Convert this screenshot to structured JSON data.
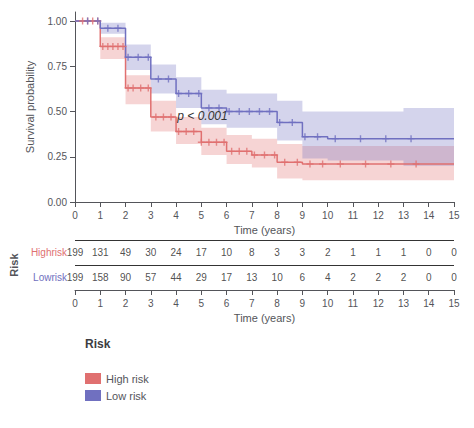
{
  "chart_data": {
    "type": "line",
    "xlabel": "Time (years)",
    "ylabel": "Survival probability",
    "annotation": "p < 0.001",
    "x": [
      0,
      1,
      2,
      3,
      4,
      5,
      6,
      7,
      8,
      9,
      10,
      11,
      12,
      13,
      14,
      15
    ],
    "series": [
      {
        "name": "High risk",
        "color": "#E07070",
        "marker": "plus",
        "values": [
          1.0,
          0.86,
          0.63,
          0.47,
          0.39,
          0.33,
          0.28,
          0.26,
          0.22,
          0.21,
          0.21,
          0.21,
          0.21,
          0.21,
          0.21,
          0.21
        ],
        "upper": [
          1.0,
          0.91,
          0.7,
          0.56,
          0.47,
          0.41,
          0.37,
          0.35,
          0.32,
          0.31,
          0.31,
          0.31,
          0.31,
          0.31,
          0.31,
          0.31
        ],
        "lower": [
          1.0,
          0.79,
          0.54,
          0.39,
          0.32,
          0.26,
          0.21,
          0.19,
          0.13,
          0.12,
          0.12,
          0.12,
          0.12,
          0.12,
          0.12,
          0.12
        ],
        "censor_x": [
          0.3,
          0.5,
          0.7,
          0.9,
          1.1,
          1.3,
          1.5,
          1.7,
          1.9,
          2.1,
          2.3,
          2.6,
          2.9,
          3.2,
          3.5,
          3.8,
          4.1,
          4.4,
          4.7,
          5.0,
          5.3,
          5.6,
          5.9,
          6.2,
          6.5,
          6.8,
          7.1,
          7.5,
          7.9,
          8.3,
          8.8,
          9.3,
          9.8,
          10.5,
          11.5,
          12.5,
          13.5
        ],
        "censor_y": [
          1.0,
          1.0,
          1.0,
          1.0,
          0.86,
          0.86,
          0.86,
          0.86,
          0.86,
          0.63,
          0.63,
          0.63,
          0.63,
          0.47,
          0.47,
          0.47,
          0.39,
          0.39,
          0.39,
          0.33,
          0.33,
          0.33,
          0.33,
          0.28,
          0.28,
          0.28,
          0.26,
          0.26,
          0.26,
          0.22,
          0.22,
          0.21,
          0.21,
          0.21,
          0.21,
          0.21,
          0.21
        ]
      },
      {
        "name": "Low risk",
        "color": "#7070C0",
        "marker": "plus",
        "values": [
          1.0,
          0.96,
          0.8,
          0.68,
          0.6,
          0.52,
          0.5,
          0.5,
          0.44,
          0.36,
          0.35,
          0.35,
          0.35,
          0.35,
          0.35,
          0.35
        ],
        "upper": [
          1.0,
          0.99,
          0.87,
          0.76,
          0.69,
          0.62,
          0.6,
          0.6,
          0.56,
          0.5,
          0.5,
          0.5,
          0.5,
          0.52,
          0.52,
          0.52
        ],
        "lower": [
          1.0,
          0.93,
          0.73,
          0.6,
          0.52,
          0.43,
          0.41,
          0.41,
          0.34,
          0.24,
          0.23,
          0.23,
          0.23,
          0.2,
          0.2,
          0.2
        ],
        "censor_x": [
          0.5,
          0.9,
          1.3,
          1.7,
          2.1,
          2.5,
          2.9,
          3.3,
          3.7,
          4.1,
          4.5,
          4.9,
          5.3,
          5.7,
          6.1,
          6.5,
          6.9,
          7.3,
          7.7,
          8.1,
          8.6,
          9.1,
          9.6,
          10.3,
          11.3,
          12.3,
          13.3
        ],
        "censor_y": [
          1.0,
          1.0,
          0.96,
          0.96,
          0.8,
          0.8,
          0.8,
          0.68,
          0.68,
          0.6,
          0.6,
          0.6,
          0.52,
          0.52,
          0.5,
          0.5,
          0.5,
          0.5,
          0.5,
          0.44,
          0.44,
          0.36,
          0.36,
          0.35,
          0.35,
          0.35,
          0.35
        ]
      }
    ],
    "risk_table": {
      "title": "Risk",
      "rows": [
        {
          "label": "Highrisk",
          "values": [
            199,
            131,
            49,
            30,
            24,
            17,
            10,
            8,
            3,
            3,
            2,
            1,
            1,
            1,
            0,
            0
          ]
        },
        {
          "label": "Lowrisk",
          "values": [
            199,
            158,
            90,
            57,
            44,
            29,
            17,
            13,
            10,
            6,
            4,
            2,
            2,
            2,
            0,
            0
          ]
        }
      ]
    },
    "legend_title": "Risk",
    "legend": "bottom",
    "grid": false,
    "xlim": [
      0,
      15
    ],
    "ylim": [
      0.0,
      1.05
    ],
    "xticks": [
      0,
      1,
      2,
      3,
      4,
      5,
      6,
      7,
      8,
      9,
      10,
      11,
      12,
      13,
      14,
      15
    ],
    "yticks": [
      {
        "value": 0.0,
        "label": "0.00"
      },
      {
        "value": 0.25,
        "label": "0.25"
      },
      {
        "value": 0.5,
        "label": "0.50"
      },
      {
        "value": 0.75,
        "label": "0.75"
      },
      {
        "value": 1.0,
        "label": "1.00"
      }
    ]
  }
}
